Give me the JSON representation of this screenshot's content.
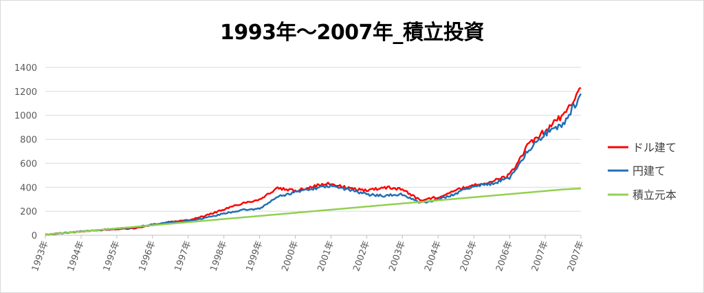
{
  "chart_data": {
    "type": "line",
    "title": "1993年～2007年_積立投資",
    "xlabel": "",
    "ylabel": "",
    "ylim": [
      0,
      1400
    ],
    "yticks": [
      0,
      200,
      400,
      600,
      800,
      1000,
      1200,
      1400
    ],
    "x_tick_labels": [
      "1993年",
      "1994年",
      "1995年",
      "1996年",
      "1997年",
      "1998年",
      "1999年",
      "2000年",
      "2001年",
      "2002年",
      "2003年",
      "2004年",
      "2005年",
      "2006年",
      "2007年",
      "2007年"
    ],
    "grid": true,
    "legend_position": "right",
    "x": [
      1993.0,
      1993.5,
      1994.0,
      1994.5,
      1995.0,
      1995.5,
      1996.0,
      1996.5,
      1997.0,
      1997.5,
      1998.0,
      1998.5,
      1999.0,
      1999.5,
      2000.0,
      2000.5,
      2001.0,
      2001.5,
      2002.0,
      2002.5,
      2003.0,
      2003.5,
      2004.0,
      2004.5,
      2005.0,
      2005.5,
      2006.0,
      2006.5,
      2007.0,
      2007.5,
      2008.0
    ],
    "series": [
      {
        "name": "ドル建て",
        "color": "#ff0000",
        "values": [
          5,
          18,
          30,
          42,
          52,
          58,
          85,
          112,
          125,
          165,
          215,
          265,
          300,
          390,
          370,
          410,
          430,
          390,
          375,
          400,
          385,
          290,
          320,
          375,
          420,
          445,
          500,
          740,
          870,
          1000,
          1230
        ]
      },
      {
        "name": "円建て",
        "color": "#1f6fb4",
        "values": [
          5,
          18,
          32,
          44,
          55,
          65,
          90,
          110,
          120,
          145,
          180,
          210,
          220,
          320,
          360,
          390,
          410,
          380,
          340,
          330,
          340,
          270,
          295,
          350,
          410,
          430,
          480,
          700,
          850,
          920,
          1180
        ]
      },
      {
        "name": "積立元本",
        "color": "#92d050",
        "values": [
          5,
          18,
          31,
          44,
          57,
          70,
          83,
          96,
          109,
          122,
          135,
          148,
          161,
          174,
          187,
          200,
          213,
          226,
          239,
          252,
          265,
          278,
          291,
          304,
          317,
          330,
          343,
          356,
          369,
          382,
          390
        ]
      }
    ]
  }
}
